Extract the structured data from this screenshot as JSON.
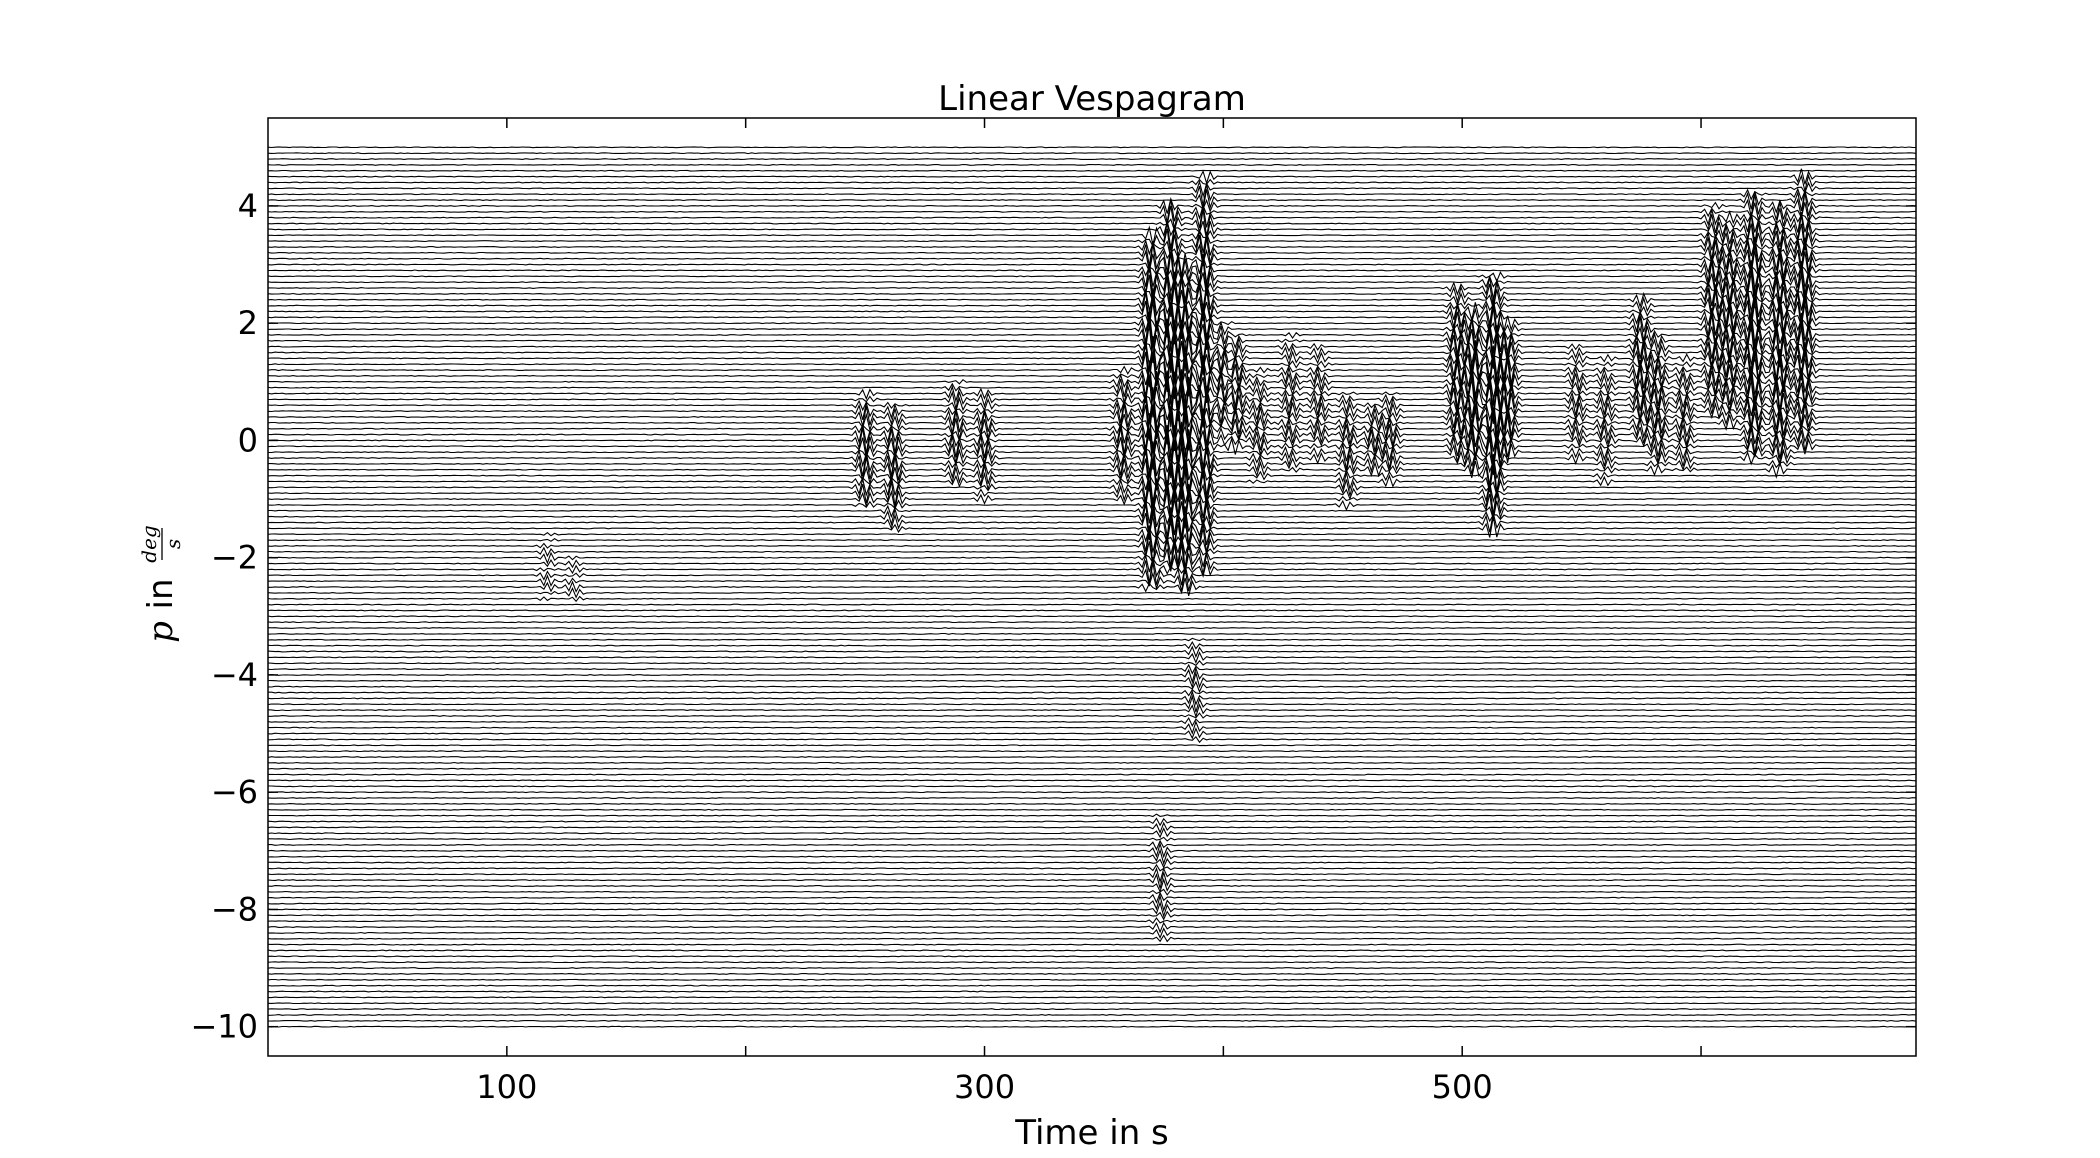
{
  "chart_data": {
    "type": "line",
    "title": "Linear Vespagram",
    "xlabel": "Time in s",
    "ylabel": {
      "var": "p",
      "in": "in",
      "numerator": "deg",
      "denominator": "s"
    },
    "xlim": [
      0,
      690
    ],
    "ylim": [
      -10.5,
      5.5
    ],
    "xticks_labeled": [
      100,
      300,
      500
    ],
    "xticks_minor": [
      200,
      400,
      600
    ],
    "yticks": [
      4,
      2,
      0,
      -2,
      -4,
      -6,
      -8,
      -10
    ],
    "ytick_labels": [
      "4",
      "2",
      "0",
      "−2",
      "−4",
      "−6",
      "−8",
      "−10"
    ],
    "trace_slowness_range": [
      -10,
      5
    ],
    "trace_slowness_step": 0.1,
    "trace_color": "#000000",
    "energy_bursts": [
      {
        "t": 250,
        "p_min": -1.2,
        "p_max": 0.8,
        "amp": 0.5
      },
      {
        "t": 262,
        "p_min": -1.5,
        "p_max": 0.6,
        "amp": 0.5
      },
      {
        "t": 288,
        "p_min": -0.8,
        "p_max": 1.0,
        "amp": 0.45
      },
      {
        "t": 300,
        "p_min": -1.0,
        "p_max": 0.8,
        "amp": 0.45
      },
      {
        "t": 358,
        "p_min": -1.0,
        "p_max": 1.2,
        "amp": 0.5
      },
      {
        "t": 370,
        "p_min": -2.5,
        "p_max": 3.5,
        "amp": 1.0
      },
      {
        "t": 378,
        "p_min": -2.3,
        "p_max": 4.0,
        "amp": 1.0
      },
      {
        "t": 384,
        "p_min": -2.5,
        "p_max": 3.0,
        "amp": 1.0
      },
      {
        "t": 392,
        "p_min": -2.3,
        "p_max": 4.5,
        "amp": 0.8
      },
      {
        "t": 400,
        "p_min": 0.0,
        "p_max": 2.0,
        "amp": 0.6
      },
      {
        "t": 405,
        "p_min": -0.2,
        "p_max": 1.8,
        "amp": 0.6
      },
      {
        "t": 415,
        "p_min": -0.8,
        "p_max": 1.2,
        "amp": 0.35
      },
      {
        "t": 428,
        "p_min": -0.6,
        "p_max": 1.8,
        "amp": 0.35
      },
      {
        "t": 440,
        "p_min": -0.4,
        "p_max": 1.6,
        "amp": 0.35
      },
      {
        "t": 452,
        "p_min": -1.2,
        "p_max": 0.8,
        "amp": 0.4
      },
      {
        "t": 463,
        "p_min": -0.6,
        "p_max": 0.6,
        "amp": 0.4
      },
      {
        "t": 470,
        "p_min": -0.8,
        "p_max": 0.8,
        "amp": 0.4
      },
      {
        "t": 498,
        "p_min": -0.4,
        "p_max": 2.6,
        "amp": 0.6
      },
      {
        "t": 505,
        "p_min": -0.5,
        "p_max": 2.2,
        "amp": 0.85
      },
      {
        "t": 513,
        "p_min": -1.6,
        "p_max": 2.8,
        "amp": 0.9
      },
      {
        "t": 519,
        "p_min": -0.3,
        "p_max": 2.0,
        "amp": 0.7
      },
      {
        "t": 548,
        "p_min": -0.4,
        "p_max": 1.6,
        "amp": 0.35
      },
      {
        "t": 560,
        "p_min": -0.8,
        "p_max": 1.4,
        "amp": 0.35
      },
      {
        "t": 575,
        "p_min": 0.0,
        "p_max": 2.4,
        "amp": 0.6
      },
      {
        "t": 582,
        "p_min": -0.6,
        "p_max": 1.8,
        "amp": 0.5
      },
      {
        "t": 593,
        "p_min": -0.6,
        "p_max": 1.4,
        "amp": 0.4
      },
      {
        "t": 605,
        "p_min": 0.4,
        "p_max": 4.0,
        "amp": 0.6
      },
      {
        "t": 612,
        "p_min": 0.2,
        "p_max": 3.8,
        "amp": 0.6
      },
      {
        "t": 622,
        "p_min": -0.4,
        "p_max": 4.2,
        "amp": 0.85
      },
      {
        "t": 633,
        "p_min": -0.6,
        "p_max": 4.0,
        "amp": 0.75
      },
      {
        "t": 643,
        "p_min": -0.2,
        "p_max": 4.5,
        "amp": 0.75
      },
      {
        "t": 117,
        "p_min": -2.8,
        "p_max": -1.6,
        "amp": 0.2
      },
      {
        "t": 128,
        "p_min": -2.8,
        "p_max": -2.0,
        "amp": 0.2
      },
      {
        "t": 388,
        "p_min": -5.2,
        "p_max": -3.4,
        "amp": 0.3
      },
      {
        "t": 374,
        "p_min": -8.6,
        "p_max": -6.4,
        "amp": 0.3
      }
    ]
  }
}
